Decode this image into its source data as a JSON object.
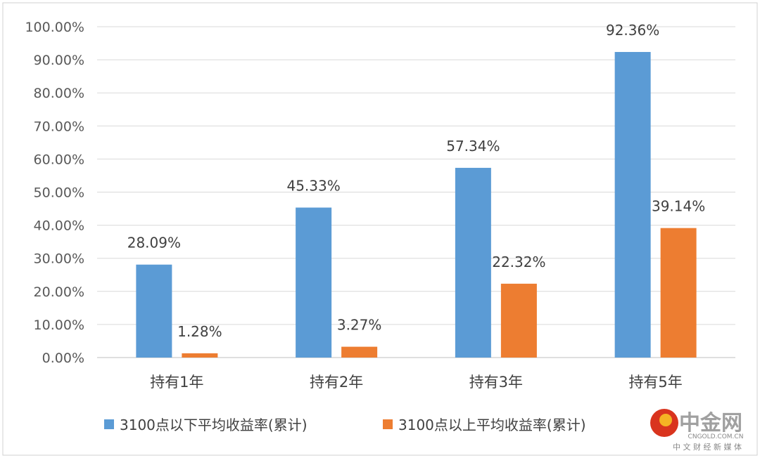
{
  "chart_data": {
    "type": "bar",
    "categories": [
      "持有1年",
      "持有2年",
      "持有3年",
      "持有5年"
    ],
    "series": [
      {
        "name": "3100点以下平均收益率(累计)",
        "color": "#5b9bd5",
        "values": [
          28.09,
          45.33,
          57.34,
          92.36
        ],
        "labels": [
          "28.09%",
          "45.33%",
          "57.34%",
          "92.36%"
        ]
      },
      {
        "name": "3100点以上平均收益率(累计)",
        "color": "#ed7d31",
        "values": [
          1.28,
          3.27,
          22.32,
          39.14
        ],
        "labels": [
          "1.28%",
          "3.27%",
          "22.32%",
          "39.14%"
        ]
      }
    ],
    "ylim": [
      0,
      100
    ],
    "yticks": [
      "0.00%",
      "10.00%",
      "20.00%",
      "30.00%",
      "40.00%",
      "50.00%",
      "60.00%",
      "70.00%",
      "80.00%",
      "90.00%",
      "100.00%"
    ],
    "grid": true,
    "legend": "bottom"
  },
  "watermark": {
    "brand": "中金网",
    "url": "CNGOLD.COM.CN",
    "tagline": "中 文 财 经 新 媒 体"
  }
}
